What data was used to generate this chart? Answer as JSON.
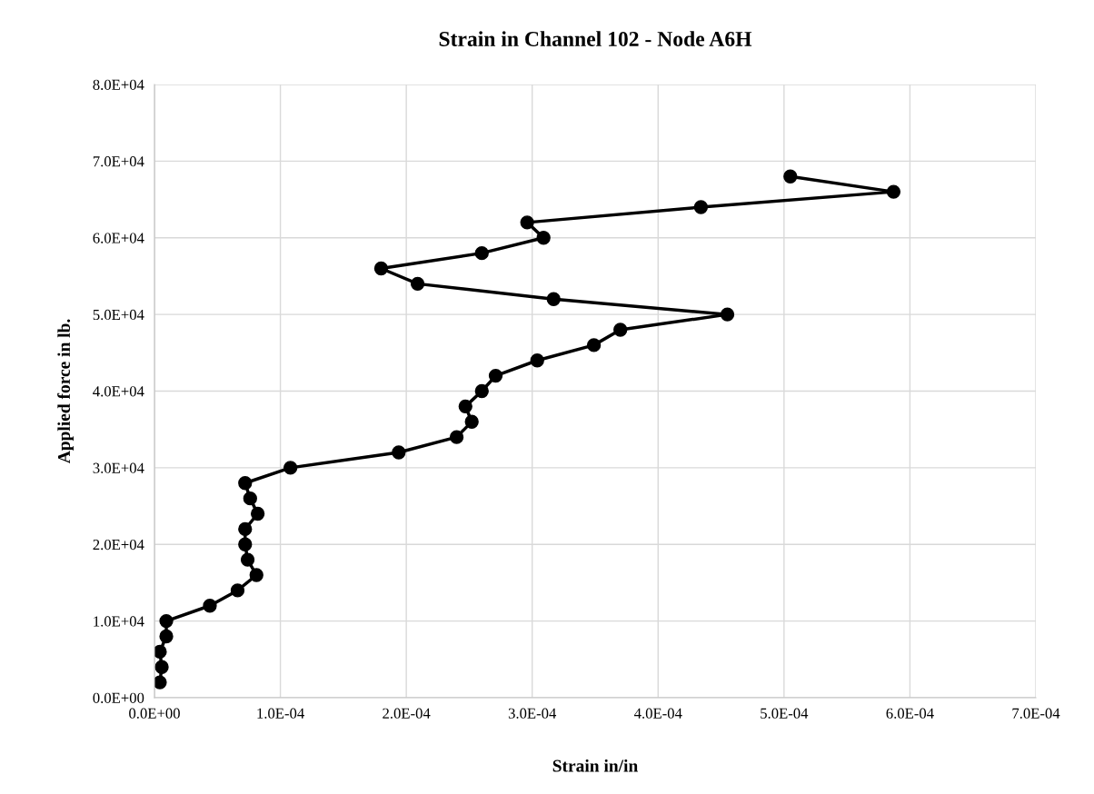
{
  "chart_data": {
    "type": "line",
    "title": "Strain in Channel 102 - Node A6H",
    "xlabel": "Strain in/in",
    "ylabel": "Applied force in lb.",
    "series": [
      {
        "color": "#000000",
        "x": [
          4.3e-06,
          5.8e-06,
          4.3e-06,
          9.4e-06,
          9.4e-06,
          4.4e-05,
          6.6e-05,
          8.1e-05,
          7.4e-05,
          7.2e-05,
          7.2e-05,
          8.2e-05,
          7.6e-05,
          7.2e-05,
          0.000108,
          0.000194,
          0.00024,
          0.000252,
          0.000247,
          0.00026,
          0.000271,
          0.000304,
          0.000349,
          0.00037,
          0.000455,
          0.000317,
          0.000209,
          0.00018,
          0.00026,
          0.000309,
          0.000296,
          0.000434,
          0.000587,
          0.000505
        ],
        "values": [
          2000,
          4000,
          6000,
          8000,
          10000,
          12000,
          14000,
          16000,
          18000,
          20000,
          22000,
          24000,
          26000,
          28000,
          30000,
          32000,
          34000,
          36000,
          38000,
          40000,
          42000,
          44000,
          46000,
          48000,
          50000,
          52000,
          54000,
          56000,
          58000,
          60000,
          62000,
          64000,
          66000,
          68000
        ]
      }
    ],
    "xlim": [
      0,
      0.0007
    ],
    "xticks": [
      {
        "value": 0,
        "label": "0.0E+00"
      },
      {
        "value": 0.0001,
        "label": "1.0E-04"
      },
      {
        "value": 0.0002,
        "label": "2.0E-04"
      },
      {
        "value": 0.0003,
        "label": "3.0E-04"
      },
      {
        "value": 0.0004,
        "label": "4.0E-04"
      },
      {
        "value": 0.0005,
        "label": "5.0E-04"
      },
      {
        "value": 0.0006,
        "label": "6.0E-04"
      },
      {
        "value": 0.0007,
        "label": "7.0E-04"
      }
    ],
    "ylim": [
      0,
      80000
    ],
    "yticks": [
      {
        "value": 0,
        "label": "0.0E+00"
      },
      {
        "value": 10000,
        "label": "1.0E+04"
      },
      {
        "value": 20000,
        "label": "2.0E+04"
      },
      {
        "value": 30000,
        "label": "3.0E+04"
      },
      {
        "value": 40000,
        "label": "4.0E+04"
      },
      {
        "value": 50000,
        "label": "5.0E+04"
      },
      {
        "value": 60000,
        "label": "6.0E+04"
      },
      {
        "value": 70000,
        "label": "7.0E+04"
      },
      {
        "value": 80000,
        "label": "8.0E+04"
      }
    ],
    "grid": true,
    "marker": "circle",
    "line_style": "solid"
  }
}
